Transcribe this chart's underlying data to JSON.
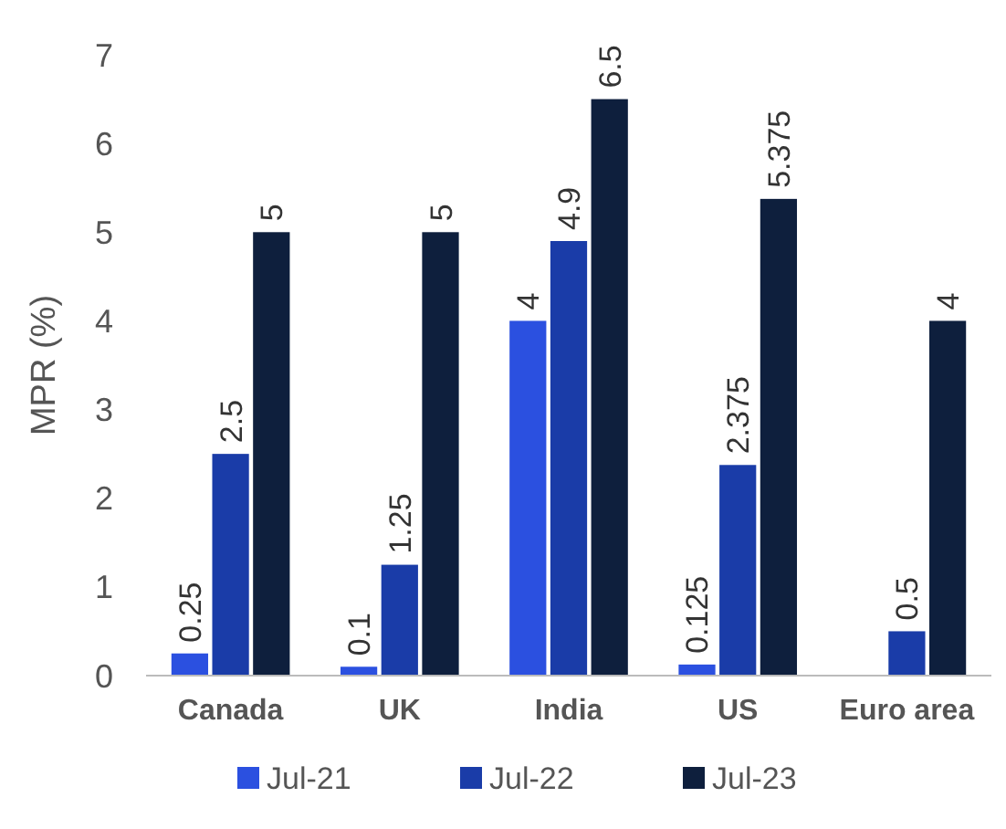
{
  "chart_data": {
    "type": "bar",
    "ylabel": "MPR (%)",
    "categories": [
      "Canada",
      "UK",
      "India",
      "US",
      "Euro area"
    ],
    "series": [
      {
        "name": "Jul-21",
        "color": "#2b50e0",
        "values": [
          0.25,
          0.1,
          4,
          0.125,
          null
        ],
        "value_labels": [
          "0.25",
          "0.1",
          "4",
          "0.125",
          null
        ]
      },
      {
        "name": "Jul-22",
        "color": "#1a3ca8",
        "values": [
          2.5,
          1.25,
          4.9,
          2.375,
          0.5
        ],
        "value_labels": [
          "2.5",
          "1.25",
          "4.9",
          "2.375",
          "0.5"
        ]
      },
      {
        "name": "Jul-23",
        "color": "#0e1f3d",
        "values": [
          5,
          5,
          6.5,
          5.375,
          4
        ],
        "value_labels": [
          "5",
          "5",
          "6.5",
          "5.375",
          "4"
        ]
      }
    ],
    "ylim": [
      0,
      7
    ],
    "yticks": [
      0,
      1,
      2,
      3,
      4,
      5,
      6,
      7
    ],
    "grid": false,
    "legend": "bottom"
  }
}
